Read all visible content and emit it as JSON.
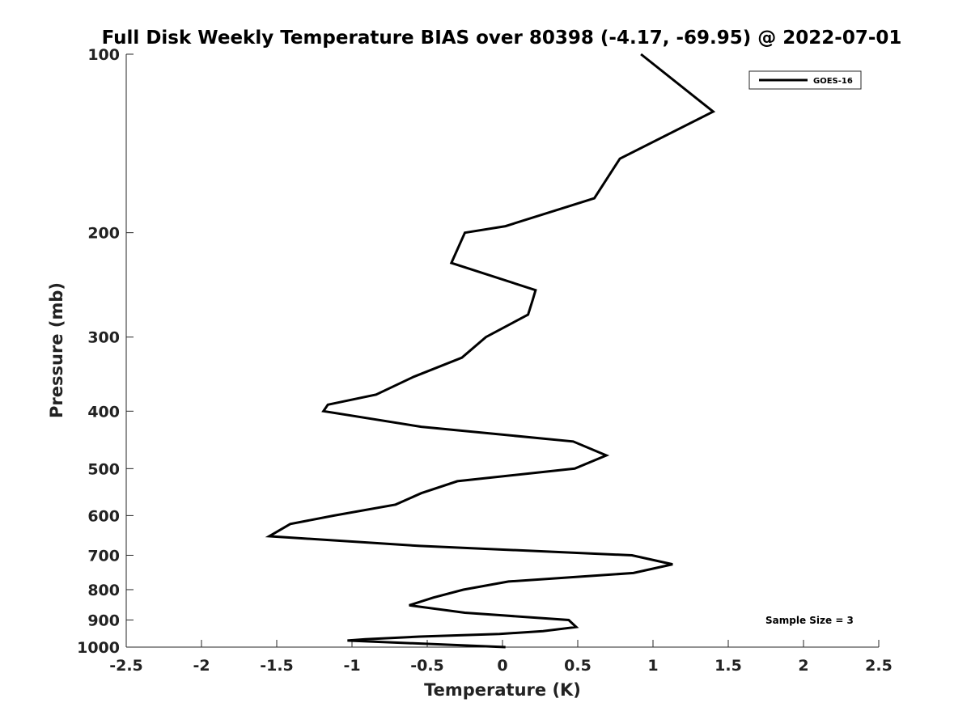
{
  "chart_data": {
    "type": "line",
    "title": "Full Disk Weekly Temperature BIAS over 80398 (-4.17, -69.95) @ 2022-07-01",
    "xlabel": "Temperature (K)",
    "ylabel": "Pressure (mb)",
    "xlim": [
      -2.5,
      2.5
    ],
    "ylim": [
      100,
      1000
    ],
    "y_scale": "log",
    "y_reversed": true,
    "grid": false,
    "legend_position": "top-right",
    "x_ticks": [
      -2.5,
      -2,
      -1.5,
      -1,
      -0.5,
      0,
      0.5,
      1,
      1.5,
      2,
      2.5
    ],
    "x_tick_labels": [
      "-2.5",
      "-2",
      "-1.5",
      "-1",
      "-0.5",
      "0",
      "0.5",
      "1",
      "1.5",
      "2",
      "2.5"
    ],
    "y_ticks": [
      100,
      200,
      300,
      400,
      500,
      600,
      700,
      800,
      900,
      1000
    ],
    "y_tick_labels": [
      "100",
      "200",
      "300",
      "400",
      "500",
      "600",
      "700",
      "800",
      "900",
      "1000"
    ],
    "annotation": "Sample Size = 3",
    "series": [
      {
        "name": "GOES-16",
        "color": "#000000",
        "points": [
          [
            0.92,
            100
          ],
          [
            1.4,
            125
          ],
          [
            0.78,
            150
          ],
          [
            0.61,
            175
          ],
          [
            0.02,
            195
          ],
          [
            -0.25,
            200
          ],
          [
            -0.34,
            225
          ],
          [
            0.22,
            250
          ],
          [
            0.2,
            260
          ],
          [
            0.17,
            275
          ],
          [
            -0.11,
            300
          ],
          [
            -0.27,
            325
          ],
          [
            -0.59,
            350
          ],
          [
            -0.84,
            375
          ],
          [
            -1.16,
            390
          ],
          [
            -1.19,
            400
          ],
          [
            -0.54,
            425
          ],
          [
            0.47,
            450
          ],
          [
            0.69,
            475
          ],
          [
            0.48,
            500
          ],
          [
            -0.3,
            525
          ],
          [
            -0.54,
            550
          ],
          [
            -0.71,
            575
          ],
          [
            -1.12,
            600
          ],
          [
            -1.41,
            620
          ],
          [
            -1.55,
            650
          ],
          [
            -0.55,
            675
          ],
          [
            0.86,
            700
          ],
          [
            1.13,
            725
          ],
          [
            0.87,
            750
          ],
          [
            0.04,
            775
          ],
          [
            -0.26,
            800
          ],
          [
            -0.46,
            825
          ],
          [
            -0.62,
            850
          ],
          [
            -0.25,
            875
          ],
          [
            0.44,
            900
          ],
          [
            0.49,
            925
          ],
          [
            0.27,
            940
          ],
          [
            -0.02,
            950
          ],
          [
            -0.55,
            960
          ],
          [
            -0.91,
            970
          ],
          [
            -1.03,
            975
          ],
          [
            0.02,
            1000
          ]
        ]
      }
    ]
  }
}
